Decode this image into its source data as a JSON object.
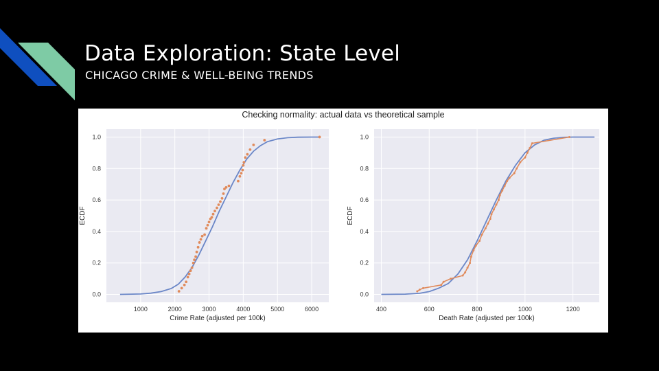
{
  "slide": {
    "title": "Data Exploration: State Level",
    "subtitle": "CHICAGO CRIME & WELL-BEING TRENDS"
  },
  "colors": {
    "accent_blue": "#0f4fbf",
    "accent_green": "#7ecba5",
    "plot_bg": "#eaeaf2",
    "theory_line": "#6a86c7",
    "actual_data": "#e08a5b"
  },
  "figure": {
    "suptitle": "Checking normality: actual data vs theoretical sample"
  },
  "chart_data": [
    {
      "type": "scatter",
      "xlabel": "Crime Rate (adjusted per 100k)",
      "ylabel": "ECDF",
      "xlim": [
        0,
        6500
      ],
      "ylim": [
        -0.05,
        1.05
      ],
      "xticks": [
        1000,
        2000,
        3000,
        4000,
        5000,
        6000
      ],
      "yticks": [
        0.0,
        0.2,
        0.4,
        0.6,
        0.8,
        1.0
      ],
      "grid": true,
      "series": [
        {
          "style": "line",
          "x": [
            400,
            1000,
            1300,
            1600,
            1900,
            2100,
            2300,
            2500,
            2700,
            2900,
            3100,
            3300,
            3500,
            3700,
            3900,
            4100,
            4300,
            4500,
            4700,
            5000,
            5300,
            5600,
            6000,
            6250
          ],
          "y": [
            0.0,
            0.003,
            0.008,
            0.018,
            0.038,
            0.065,
            0.11,
            0.17,
            0.25,
            0.34,
            0.43,
            0.53,
            0.62,
            0.71,
            0.79,
            0.86,
            0.91,
            0.945,
            0.97,
            0.988,
            0.996,
            0.999,
            1.0,
            1.0
          ]
        },
        {
          "style": "markers",
          "x": [
            2120,
            2200,
            2280,
            2330,
            2380,
            2420,
            2460,
            2500,
            2540,
            2570,
            2610,
            2640,
            2680,
            2720,
            2760,
            2800,
            2870,
            2920,
            2960,
            3000,
            3040,
            3080,
            3120,
            3170,
            3230,
            3280,
            3330,
            3380,
            3420,
            3450,
            3500,
            3580,
            3850,
            3900,
            3940,
            3980,
            4000,
            4020,
            4060,
            4120,
            4200,
            4300,
            4620,
            6230
          ],
          "y": [
            0.02,
            0.04,
            0.06,
            0.08,
            0.11,
            0.13,
            0.15,
            0.17,
            0.2,
            0.22,
            0.24,
            0.27,
            0.3,
            0.33,
            0.35,
            0.37,
            0.38,
            0.42,
            0.44,
            0.46,
            0.48,
            0.49,
            0.51,
            0.53,
            0.55,
            0.57,
            0.59,
            0.61,
            0.64,
            0.67,
            0.68,
            0.69,
            0.72,
            0.75,
            0.77,
            0.79,
            0.82,
            0.84,
            0.87,
            0.89,
            0.92,
            0.95,
            0.98,
            1.0
          ]
        }
      ]
    },
    {
      "type": "line",
      "xlabel": "Death Rate (adjusted per 100k)",
      "ylabel": "ECDF",
      "xlim": [
        370,
        1310
      ],
      "ylim": [
        -0.05,
        1.05
      ],
      "xticks": [
        400,
        600,
        800,
        1000,
        1200
      ],
      "yticks": [
        0.0,
        0.2,
        0.4,
        0.6,
        0.8,
        1.0
      ],
      "grid": true,
      "series": [
        {
          "style": "line",
          "x": [
            400,
            500,
            560,
            600,
            640,
            680,
            720,
            760,
            800,
            840,
            880,
            920,
            960,
            1000,
            1040,
            1080,
            1120,
            1160,
            1200,
            1290
          ],
          "y": [
            0.0,
            0.002,
            0.007,
            0.018,
            0.04,
            0.07,
            0.13,
            0.22,
            0.34,
            0.47,
            0.6,
            0.72,
            0.82,
            0.9,
            0.95,
            0.98,
            0.993,
            0.998,
            1.0,
            1.0
          ]
        },
        {
          "style": "line-markers",
          "x": [
            550,
            560,
            575,
            650,
            660,
            690,
            740,
            750,
            760,
            770,
            775,
            785,
            795,
            810,
            820,
            835,
            845,
            855,
            860,
            870,
            880,
            890,
            895,
            905,
            915,
            925,
            935,
            955,
            965,
            980,
            1000,
            1010,
            1020,
            1030,
            1185
          ],
          "y": [
            0.02,
            0.03,
            0.04,
            0.06,
            0.08,
            0.1,
            0.12,
            0.14,
            0.17,
            0.2,
            0.24,
            0.28,
            0.31,
            0.34,
            0.38,
            0.42,
            0.45,
            0.48,
            0.51,
            0.54,
            0.57,
            0.6,
            0.63,
            0.66,
            0.69,
            0.72,
            0.74,
            0.77,
            0.8,
            0.84,
            0.87,
            0.9,
            0.93,
            0.96,
            1.0
          ]
        }
      ]
    }
  ]
}
